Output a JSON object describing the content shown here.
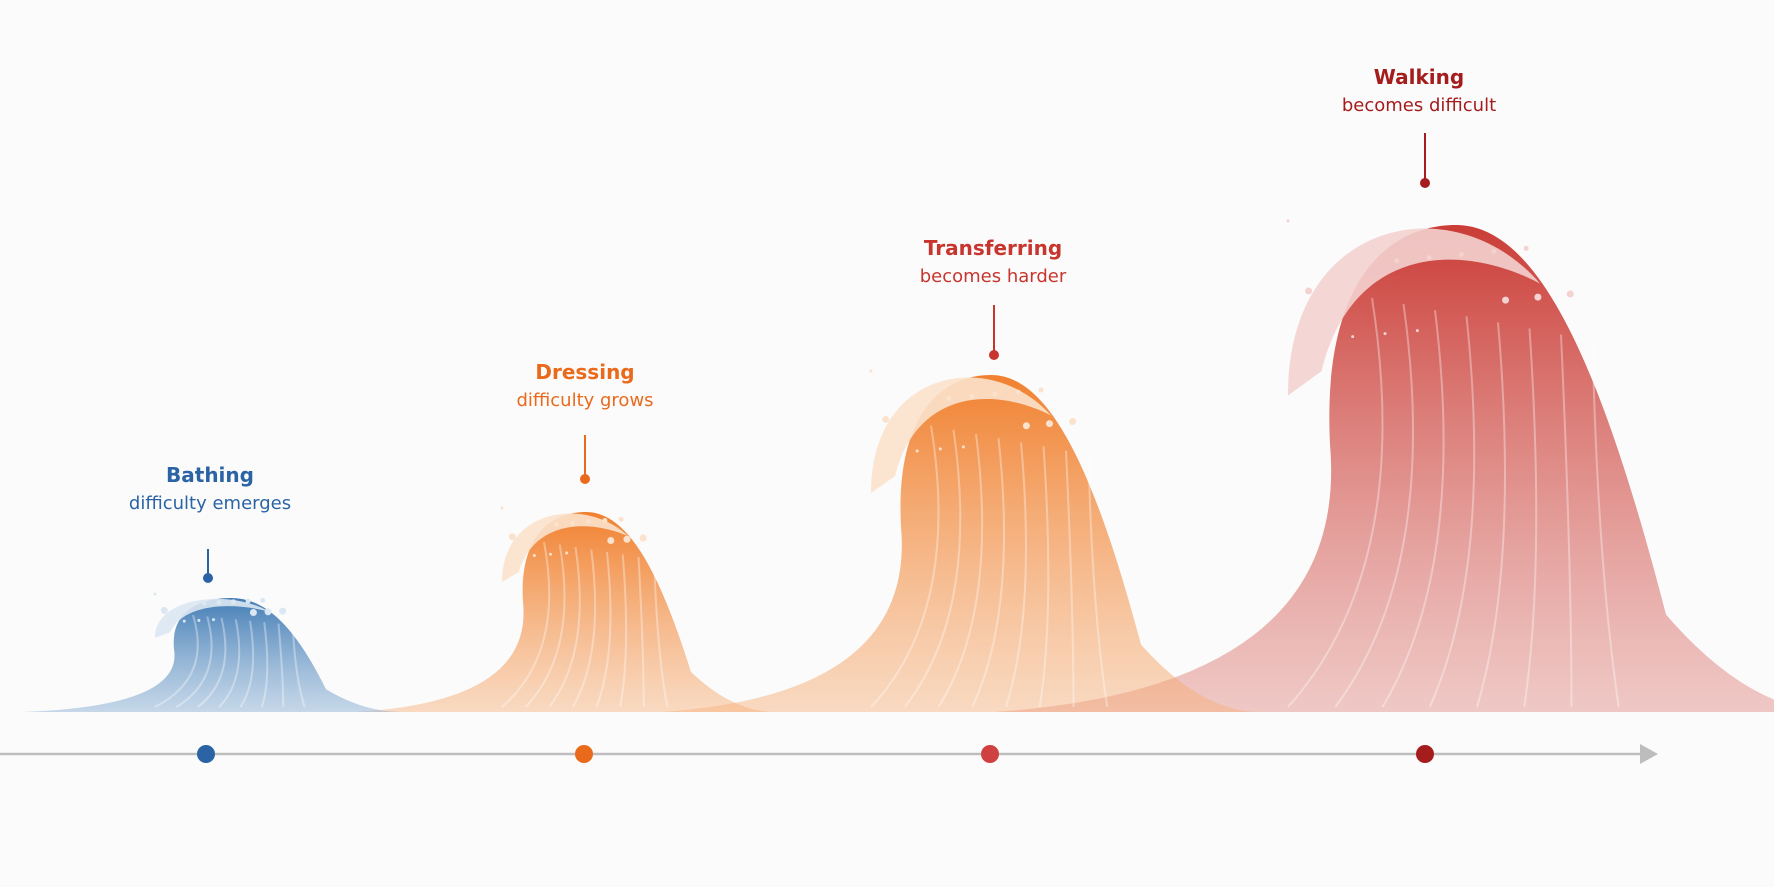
{
  "stages": [
    {
      "title": "Bathing",
      "subtitle": "difficulty emerges"
    },
    {
      "title": "Dressing",
      "subtitle": "difficulty grows"
    },
    {
      "title": "Transferring",
      "subtitle": "becomes harder"
    },
    {
      "title": "Walking",
      "subtitle": "becomes difficult"
    }
  ]
}
